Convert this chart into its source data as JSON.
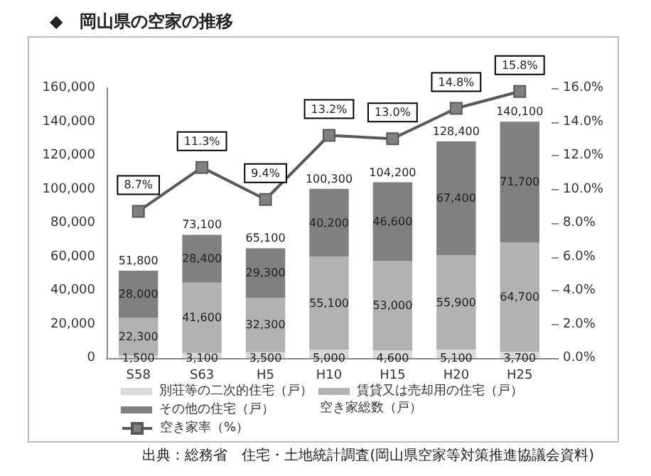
{
  "chart_data": {
    "type": "bar",
    "stacked": true,
    "title": "◆　岡山県の空家の推移",
    "categories": [
      "S58",
      "S63",
      "H5",
      "H10",
      "H15",
      "H20",
      "H25"
    ],
    "series": [
      {
        "name": "別荘等の二次的住宅（戸）",
        "color": "#d9d9d9",
        "values": [
          1500,
          3100,
          3500,
          5000,
          4600,
          5100,
          3700
        ],
        "value_labels": [
          "1,500",
          "3,100",
          "3,500",
          "5,000",
          "4,600",
          "5,100",
          "3,700"
        ]
      },
      {
        "name": "賃貸又は売却用の住宅（戸）",
        "color": "#b2b2b2",
        "values": [
          22300,
          41600,
          32300,
          55100,
          53000,
          55900,
          64700
        ],
        "value_labels": [
          "22,300",
          "41,600",
          "32,300",
          "55,100",
          "53,000",
          "55,900",
          "64,700"
        ]
      },
      {
        "name": "その他の住宅（戸）",
        "color": "#808080",
        "values": [
          28000,
          28400,
          29300,
          40200,
          46600,
          67400,
          71700
        ],
        "value_labels": [
          "28,000",
          "28,400",
          "29,300",
          "40,200",
          "46,600",
          "67,400",
          "71,700"
        ]
      },
      {
        "name": "空き家率（%）",
        "type": "line",
        "axis": "y2",
        "marker": "square",
        "color": "#595959",
        "values": [
          8.7,
          11.3,
          9.4,
          13.2,
          13.0,
          14.8,
          15.8
        ],
        "value_labels": [
          "8.7%",
          "11.3%",
          "9.4%",
          "13.2%",
          "13.0%",
          "14.8%",
          "15.8%"
        ]
      }
    ],
    "ylim": [
      0,
      160000
    ],
    "yticks": [
      {
        "value": 0,
        "label": "0"
      },
      {
        "value": 20000,
        "label": "20,000"
      },
      {
        "value": 40000,
        "label": "40,000"
      },
      {
        "value": 60000,
        "label": "60,000"
      },
      {
        "value": 80000,
        "label": "80,000"
      },
      {
        "value": 100000,
        "label": "100,000"
      },
      {
        "value": 120000,
        "label": "120,000"
      },
      {
        "value": 140000,
        "label": "140,000"
      },
      {
        "value": 160000,
        "label": "160,000"
      }
    ],
    "y2lim": [
      0,
      16
    ],
    "y2ticks": [
      {
        "value": 0,
        "label": "0.0%"
      },
      {
        "value": 2,
        "label": "2.0%"
      },
      {
        "value": 4,
        "label": "4.0%"
      },
      {
        "value": 6,
        "label": "6.0%"
      },
      {
        "value": 8,
        "label": "8.0%"
      },
      {
        "value": 10,
        "label": "10.0%"
      },
      {
        "value": 12,
        "label": "12.0%"
      },
      {
        "value": 14,
        "label": "14.0%"
      },
      {
        "value": 16,
        "label": "16.0%"
      }
    ],
    "totals": [
      "51,800",
      "73,100",
      "65,100",
      "100,300",
      "104,200",
      "128,400",
      "140,100"
    ],
    "legend": "bottom",
    "annotations": [
      "空き家総数（戸）",
      "出典：総務省　住宅・土地統計調査(岡山県空家等対策推進協議会資料)"
    ]
  }
}
